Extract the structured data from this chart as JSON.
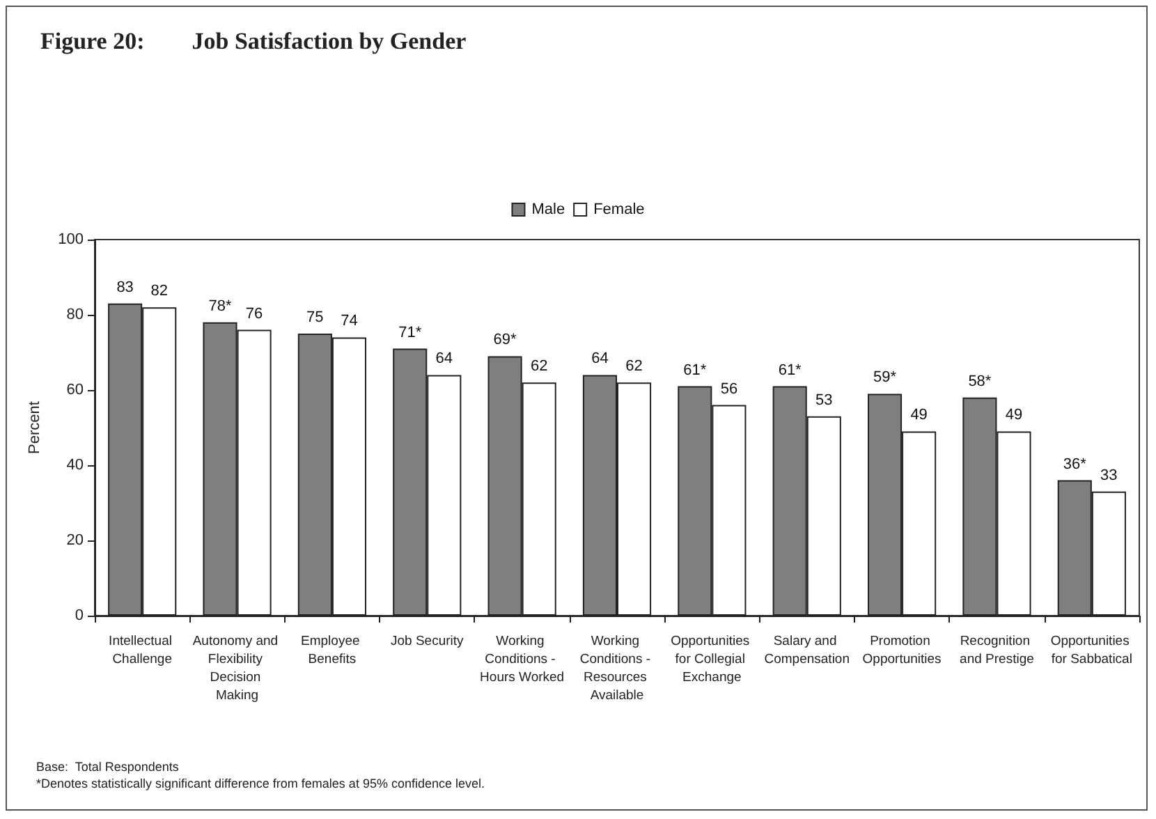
{
  "chart_data": {
    "type": "bar",
    "title": "Figure 20:        Job Satisfaction by Gender",
    "categories": [
      "Intellectual Challenge",
      "Autonomy and Flexibility Decision Making",
      "Employee Benefits",
      "Job Security",
      "Working Conditions - Hours Worked",
      "Working Conditions - Resources Available",
      "Opportunities for Collegial Exchange",
      "Salary and Compensation",
      "Promotion Opportunities",
      "Recognition and Prestige",
      "Opportunities for Sabbatical"
    ],
    "series": [
      {
        "name": "Male",
        "color": "#7f7f7f",
        "values": [
          83,
          78,
          75,
          71,
          69,
          64,
          61,
          61,
          59,
          58,
          36
        ],
        "value_labels": [
          "83",
          "78*",
          "75",
          "71*",
          "69*",
          "64",
          "61*",
          "61*",
          "59*",
          "58*",
          "36*"
        ]
      },
      {
        "name": "Female",
        "color": "#ffffff",
        "values": [
          82,
          76,
          74,
          64,
          62,
          62,
          56,
          53,
          49,
          49,
          33
        ],
        "value_labels": [
          "82",
          "76",
          "74",
          "64",
          "62",
          "62",
          "56",
          "53",
          "49",
          "49",
          "33"
        ]
      }
    ],
    "ylabel": "Percent",
    "ylim": [
      0,
      100
    ],
    "yticks": [
      0,
      20,
      40,
      60,
      80,
      100
    ],
    "grid": false,
    "legend": "top",
    "annotations": [
      "Base:  Total Respondents",
      "*Denotes statistically significant difference from females at 95% confidence level."
    ]
  }
}
